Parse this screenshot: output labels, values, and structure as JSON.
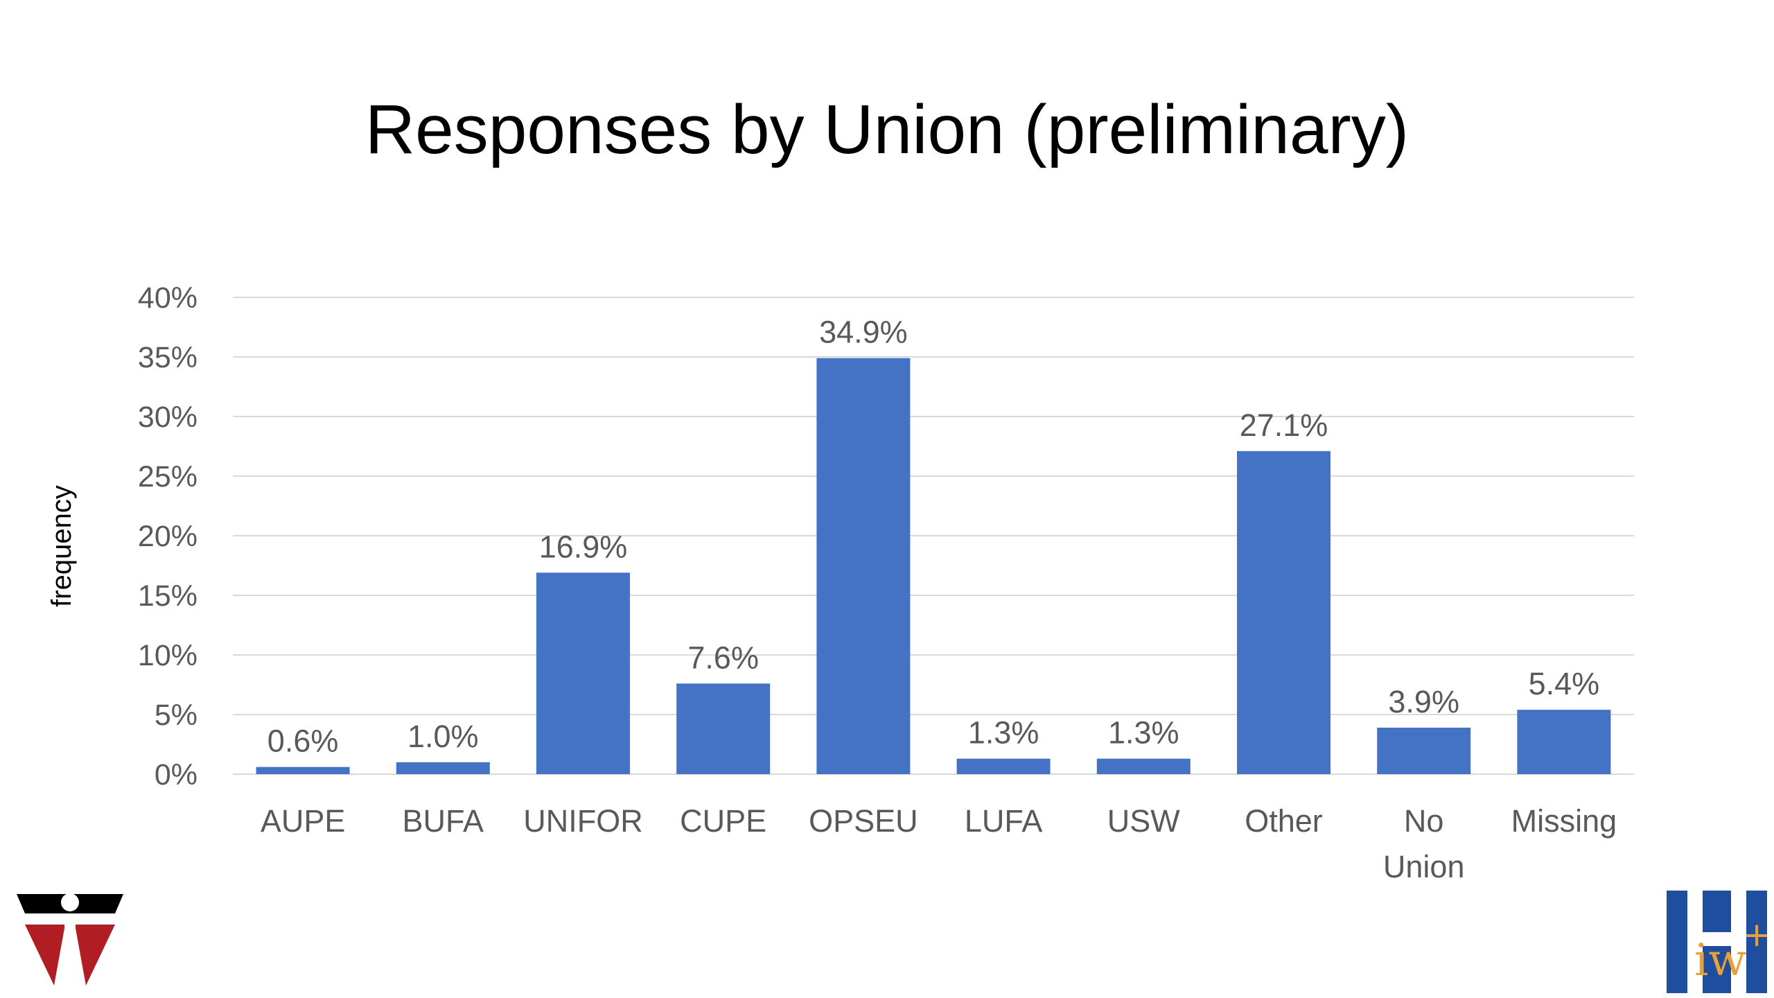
{
  "slide": {
    "title": "Responses by Union (preliminary)"
  },
  "chart_data": {
    "type": "bar",
    "title": "Responses by Union (preliminary)",
    "xlabel": "",
    "ylabel": "frequency",
    "categories": [
      "AUPE",
      "BUFA",
      "UNIFOR",
      "CUPE",
      "OPSEU",
      "LUFA",
      "USW",
      "Other",
      "No Union",
      "Missing"
    ],
    "series": [
      {
        "values": [
          0.6,
          1.0,
          16.9,
          7.6,
          34.9,
          1.3,
          1.3,
          27.1,
          3.9,
          5.4
        ],
        "data_labels": [
          "0.6%",
          "1.0%",
          "16.9%",
          "7.6%",
          "34.9%",
          "1.3%",
          "1.3%",
          "27.1%",
          "3.9%",
          "5.4%"
        ],
        "color": "#4472C4"
      }
    ],
    "ylim": [
      0,
      40
    ],
    "yticks": [
      0,
      5,
      10,
      15,
      20,
      25,
      30,
      35,
      40
    ],
    "ytick_labels": [
      "0%",
      "5%",
      "10%",
      "15%",
      "20%",
      "25%",
      "30%",
      "35%",
      "40%"
    ],
    "grid": true,
    "legend": "none"
  },
  "colors": {
    "bar": "#4472C4",
    "gridline": "#D9D9D9",
    "tick_text": "#595959",
    "logo_red": "#B01E23",
    "logo_blue": "#1F4E9E",
    "logo_orange": "#E8A13A"
  },
  "logos": {
    "left": "university-logo-icon",
    "right": "iwh-logo-icon"
  }
}
